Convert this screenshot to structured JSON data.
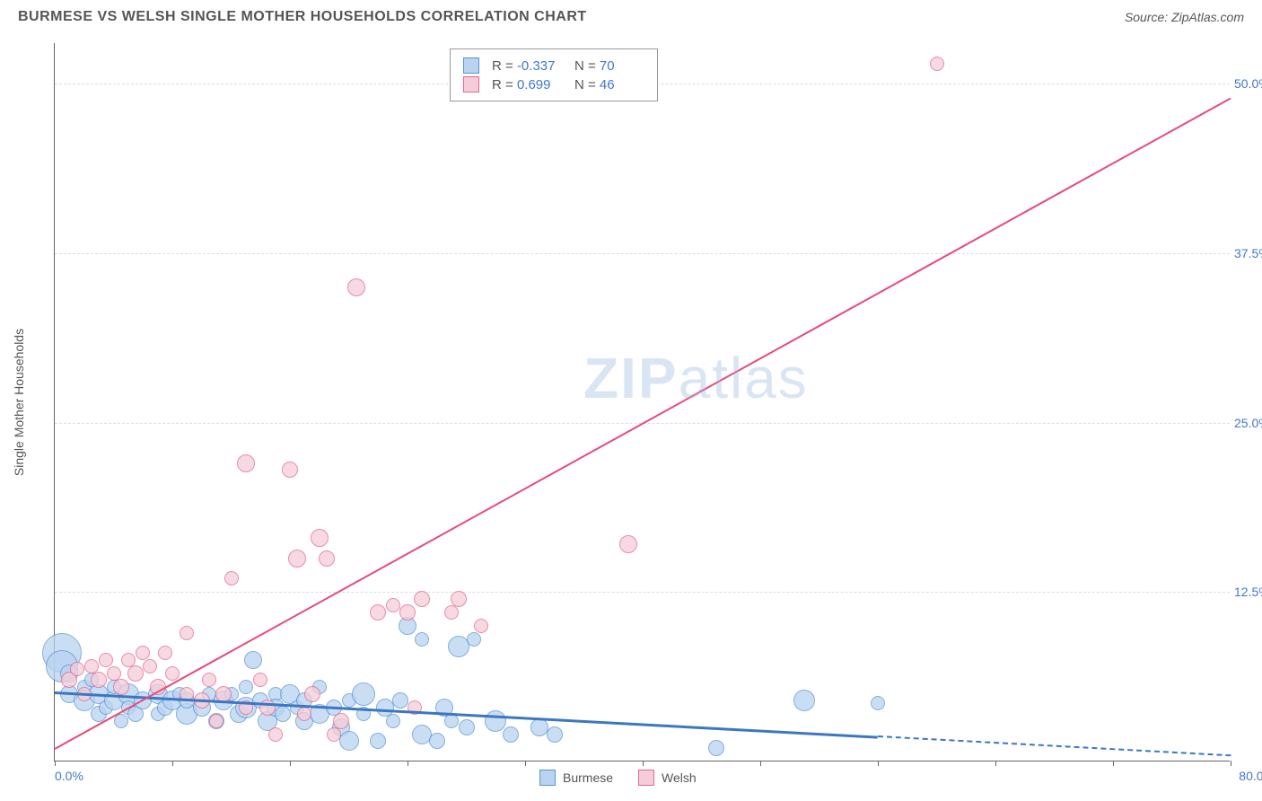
{
  "title": "BURMESE VS WELSH SINGLE MOTHER HOUSEHOLDS CORRELATION CHART",
  "source": "Source: ZipAtlas.com",
  "watermark_bold": "ZIP",
  "watermark_light": "atlas",
  "yaxis_title": "Single Mother Households",
  "chart": {
    "type": "scatter",
    "xlim": [
      0,
      80
    ],
    "ylim": [
      0,
      53
    ],
    "background_color": "#ffffff",
    "grid_color": "#dddddd",
    "axis_color": "#666666",
    "yticks": [
      12.5,
      25.0,
      37.5,
      50.0
    ],
    "ytick_labels": [
      "12.5%",
      "25.0%",
      "37.5%",
      "50.0%"
    ],
    "xticks": [
      0,
      8,
      16,
      24,
      32,
      40,
      48,
      56,
      64,
      72,
      80
    ],
    "x_start_label": "0.0%",
    "x_end_label": "80.0%",
    "label_color": "#4178c8",
    "label_fontsize": 14,
    "series": [
      {
        "name": "Burmese",
        "fill": "#b9d3f0",
        "stroke": "#5a93d6",
        "trend_color": "#3b77c2",
        "trend_width": 2.5,
        "trend": {
          "x1": 0,
          "y1": 5.2,
          "x2": 80,
          "y2": 0.5
        },
        "solid_to_x": 56,
        "r_value": "-0.337",
        "n_value": "70",
        "points": [
          {
            "x": 0.5,
            "y": 8,
            "r": 22
          },
          {
            "x": 0.5,
            "y": 7,
            "r": 18
          },
          {
            "x": 1,
            "y": 5,
            "r": 10
          },
          {
            "x": 1,
            "y": 6.5,
            "r": 10
          },
          {
            "x": 2,
            "y": 5.5,
            "r": 8
          },
          {
            "x": 2,
            "y": 4.5,
            "r": 12
          },
          {
            "x": 2.5,
            "y": 6,
            "r": 8
          },
          {
            "x": 3,
            "y": 5,
            "r": 11
          },
          {
            "x": 3,
            "y": 3.5,
            "r": 9
          },
          {
            "x": 3.5,
            "y": 4,
            "r": 8
          },
          {
            "x": 4,
            "y": 4.5,
            "r": 11
          },
          {
            "x": 4,
            "y": 5.5,
            "r": 8
          },
          {
            "x": 4.5,
            "y": 3,
            "r": 8
          },
          {
            "x": 5,
            "y": 5,
            "r": 12
          },
          {
            "x": 5,
            "y": 4,
            "r": 8
          },
          {
            "x": 5.5,
            "y": 3.5,
            "r": 9
          },
          {
            "x": 6,
            "y": 4.5,
            "r": 10
          },
          {
            "x": 7,
            "y": 5,
            "r": 11
          },
          {
            "x": 7,
            "y": 3.5,
            "r": 8
          },
          {
            "x": 7.5,
            "y": 4,
            "r": 9
          },
          {
            "x": 8,
            "y": 4.5,
            "r": 11
          },
          {
            "x": 8.5,
            "y": 5,
            "r": 8
          },
          {
            "x": 9,
            "y": 3.5,
            "r": 12
          },
          {
            "x": 9,
            "y": 4.5,
            "r": 9
          },
          {
            "x": 10,
            "y": 4,
            "r": 10
          },
          {
            "x": 10.5,
            "y": 5,
            "r": 8
          },
          {
            "x": 11,
            "y": 3,
            "r": 9
          },
          {
            "x": 11.5,
            "y": 4.5,
            "r": 11
          },
          {
            "x": 12,
            "y": 5,
            "r": 8
          },
          {
            "x": 12.5,
            "y": 3.5,
            "r": 10
          },
          {
            "x": 13,
            "y": 4,
            "r": 12
          },
          {
            "x": 13,
            "y": 5.5,
            "r": 8
          },
          {
            "x": 13.5,
            "y": 7.5,
            "r": 10
          },
          {
            "x": 14,
            "y": 4.5,
            "r": 9
          },
          {
            "x": 14.5,
            "y": 3,
            "r": 11
          },
          {
            "x": 15,
            "y": 5,
            "r": 8
          },
          {
            "x": 15,
            "y": 4,
            "r": 10
          },
          {
            "x": 15.5,
            "y": 3.5,
            "r": 9
          },
          {
            "x": 16,
            "y": 5,
            "r": 11
          },
          {
            "x": 16.5,
            "y": 4,
            "r": 8
          },
          {
            "x": 17,
            "y": 3,
            "r": 10
          },
          {
            "x": 17,
            "y": 4.5,
            "r": 9
          },
          {
            "x": 18,
            "y": 5.5,
            "r": 8
          },
          {
            "x": 18,
            "y": 3.5,
            "r": 11
          },
          {
            "x": 19,
            "y": 4,
            "r": 9
          },
          {
            "x": 19.5,
            "y": 2.5,
            "r": 10
          },
          {
            "x": 20,
            "y": 4.5,
            "r": 8
          },
          {
            "x": 20,
            "y": 1.5,
            "r": 11
          },
          {
            "x": 21,
            "y": 5,
            "r": 13
          },
          {
            "x": 21,
            "y": 3.5,
            "r": 8
          },
          {
            "x": 22,
            "y": 1.5,
            "r": 9
          },
          {
            "x": 22.5,
            "y": 4,
            "r": 10
          },
          {
            "x": 23,
            "y": 3,
            "r": 8
          },
          {
            "x": 23.5,
            "y": 4.5,
            "r": 9
          },
          {
            "x": 24,
            "y": 10,
            "r": 10
          },
          {
            "x": 25,
            "y": 2,
            "r": 11
          },
          {
            "x": 25,
            "y": 9,
            "r": 8
          },
          {
            "x": 26,
            "y": 1.5,
            "r": 9
          },
          {
            "x": 26.5,
            "y": 4,
            "r": 10
          },
          {
            "x": 27,
            "y": 3,
            "r": 8
          },
          {
            "x": 27.5,
            "y": 8.5,
            "r": 12
          },
          {
            "x": 28,
            "y": 2.5,
            "r": 9
          },
          {
            "x": 28.5,
            "y": 9,
            "r": 8
          },
          {
            "x": 30,
            "y": 3,
            "r": 12
          },
          {
            "x": 31,
            "y": 2,
            "r": 9
          },
          {
            "x": 33,
            "y": 2.5,
            "r": 10
          },
          {
            "x": 34,
            "y": 2,
            "r": 9
          },
          {
            "x": 45,
            "y": 1,
            "r": 9
          },
          {
            "x": 51,
            "y": 4.5,
            "r": 12
          },
          {
            "x": 56,
            "y": 4.3,
            "r": 8
          }
        ]
      },
      {
        "name": "Welsh",
        "fill": "#f5cdd9",
        "stroke": "#e5668c",
        "trend_color": "#e84a7a",
        "trend_width": 2,
        "trend": {
          "x1": 0,
          "y1": 1.0,
          "x2": 80,
          "y2": 49
        },
        "solid_to_x": 80,
        "r_value": "0.699",
        "n_value": "46",
        "points": [
          {
            "x": 1,
            "y": 6,
            "r": 9
          },
          {
            "x": 1.5,
            "y": 6.8,
            "r": 8
          },
          {
            "x": 2,
            "y": 5,
            "r": 8
          },
          {
            "x": 2.5,
            "y": 7,
            "r": 8
          },
          {
            "x": 3,
            "y": 6,
            "r": 9
          },
          {
            "x": 3.5,
            "y": 7.5,
            "r": 8
          },
          {
            "x": 4,
            "y": 6.5,
            "r": 8
          },
          {
            "x": 4.5,
            "y": 5.5,
            "r": 9
          },
          {
            "x": 5,
            "y": 7.5,
            "r": 8
          },
          {
            "x": 5.5,
            "y": 6.5,
            "r": 9
          },
          {
            "x": 6,
            "y": 8,
            "r": 8
          },
          {
            "x": 6.5,
            "y": 7,
            "r": 8
          },
          {
            "x": 7,
            "y": 5.5,
            "r": 9
          },
          {
            "x": 7.5,
            "y": 8,
            "r": 8
          },
          {
            "x": 8,
            "y": 6.5,
            "r": 8
          },
          {
            "x": 9,
            "y": 5,
            "r": 8
          },
          {
            "x": 9,
            "y": 9.5,
            "r": 8
          },
          {
            "x": 10,
            "y": 4.5,
            "r": 9
          },
          {
            "x": 10.5,
            "y": 6,
            "r": 8
          },
          {
            "x": 11,
            "y": 3,
            "r": 8
          },
          {
            "x": 11.5,
            "y": 5,
            "r": 9
          },
          {
            "x": 12,
            "y": 13.5,
            "r": 8
          },
          {
            "x": 13,
            "y": 22,
            "r": 10
          },
          {
            "x": 13,
            "y": 4,
            "r": 8
          },
          {
            "x": 14,
            "y": 6,
            "r": 8
          },
          {
            "x": 14.5,
            "y": 4,
            "r": 9
          },
          {
            "x": 15,
            "y": 2,
            "r": 8
          },
          {
            "x": 16,
            "y": 21.5,
            "r": 9
          },
          {
            "x": 16.5,
            "y": 15,
            "r": 10
          },
          {
            "x": 17,
            "y": 3.5,
            "r": 8
          },
          {
            "x": 17.5,
            "y": 5,
            "r": 9
          },
          {
            "x": 18,
            "y": 16.5,
            "r": 10
          },
          {
            "x": 18.5,
            "y": 15,
            "r": 9
          },
          {
            "x": 19,
            "y": 2,
            "r": 8
          },
          {
            "x": 19.5,
            "y": 3,
            "r": 9
          },
          {
            "x": 20.5,
            "y": 35,
            "r": 10
          },
          {
            "x": 22,
            "y": 11,
            "r": 9
          },
          {
            "x": 23,
            "y": 11.5,
            "r": 8
          },
          {
            "x": 24,
            "y": 11,
            "r": 9
          },
          {
            "x": 24.5,
            "y": 4,
            "r": 8
          },
          {
            "x": 25,
            "y": 12,
            "r": 9
          },
          {
            "x": 27,
            "y": 11,
            "r": 8
          },
          {
            "x": 27.5,
            "y": 12,
            "r": 9
          },
          {
            "x": 29,
            "y": 10,
            "r": 8
          },
          {
            "x": 39,
            "y": 16,
            "r": 10
          },
          {
            "x": 60,
            "y": 51.5,
            "r": 8
          }
        ]
      }
    ]
  },
  "stats_labels": {
    "r_prefix": "R =",
    "n_prefix": "N ="
  },
  "legend": {
    "series1": "Burmese",
    "series2": "Welsh"
  }
}
